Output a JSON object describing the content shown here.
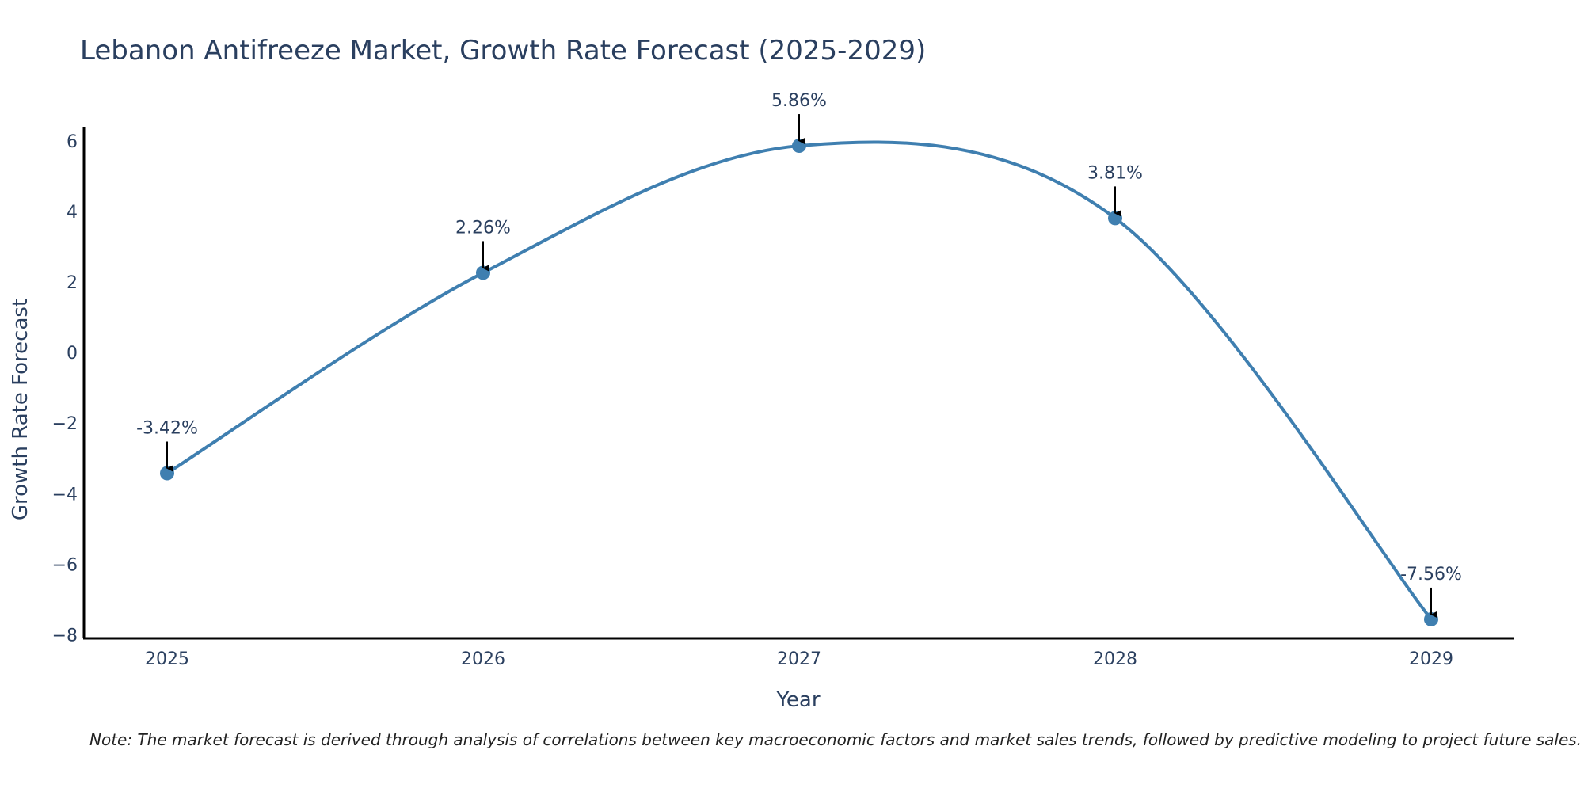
{
  "chart_data": {
    "type": "line",
    "title": "Lebanon Antifreeze Market, Growth Rate Forecast (2025-2029)",
    "xlabel": "Year",
    "ylabel": "Growth Rate Forecast",
    "categories": [
      "2025",
      "2026",
      "2027",
      "2028",
      "2029"
    ],
    "values": [
      -3.42,
      2.26,
      5.86,
      3.81,
      -7.56
    ],
    "data_labels": [
      "-3.42%",
      "2.26%",
      "5.86%",
      "3.81%",
      "-7.56%"
    ],
    "y_ticks": [
      6,
      4,
      2,
      0,
      -2,
      -4,
      -6,
      -8
    ],
    "y_tick_labels": [
      "6",
      "4",
      "2",
      "0",
      "−2",
      "−4",
      "−6",
      "−8"
    ],
    "ylim": [
      -8.1,
      6.4
    ],
    "line_color": "#3f7fb0",
    "marker_color": "#3f7fb0"
  },
  "note": "Note: The market forecast is derived through analysis of correlations between key macroeconomic factors and market sales trends, followed by predictive modeling to project future sales."
}
